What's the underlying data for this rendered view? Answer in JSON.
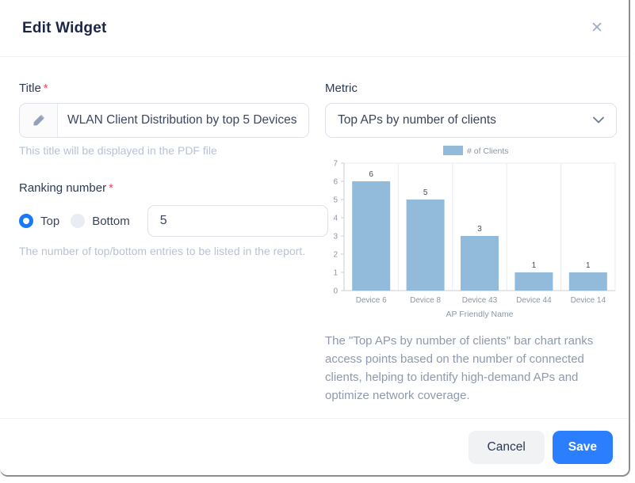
{
  "modal": {
    "title": "Edit Widget",
    "close_glyph": "✕"
  },
  "form": {
    "title_field": {
      "label": "Title",
      "required_mark": "*",
      "value": "WLAN Client Distribution by top 5 Devices",
      "helper": "This title will be displayed in the PDF file"
    },
    "ranking": {
      "label": "Ranking number",
      "required_mark": "*",
      "options": [
        {
          "label": "Top",
          "selected": true
        },
        {
          "label": "Bottom",
          "selected": false
        }
      ],
      "count_value": "5",
      "helper": "The number of top/bottom entries to be listed in the report."
    },
    "metric": {
      "label": "Metric",
      "selected_option": "Top APs by number of clients"
    },
    "description": "The \"Top APs by number of clients\" bar chart ranks access points based on the number of connected clients, helping to identify high-demand APs and optimize network coverage."
  },
  "chart_data": {
    "type": "bar",
    "title": "",
    "legend": [
      "# of Clients"
    ],
    "legend_position": "top-center",
    "categories": [
      "Device 6",
      "Device 8",
      "Device 43",
      "Device 44",
      "Device 14"
    ],
    "values": [
      6,
      5,
      3,
      1,
      1
    ],
    "xlabel": "AP Friendly Name",
    "ylabel": "",
    "ylim": [
      0,
      7
    ],
    "y_ticks": [
      0,
      1,
      2,
      3,
      4,
      5,
      6,
      7
    ],
    "grid": "vertical-category-splitlines",
    "bar_color": "#92bbdb"
  },
  "footer": {
    "cancel_label": "Cancel",
    "save_label": "Save"
  },
  "colors": {
    "accent_blue": "#2b7fff",
    "radio_selected": "#1779ff",
    "required_red": "#f5455c",
    "bar_fill": "#92bbdb",
    "axis_text": "#8c96a4",
    "grid_line": "#e8ebef"
  }
}
